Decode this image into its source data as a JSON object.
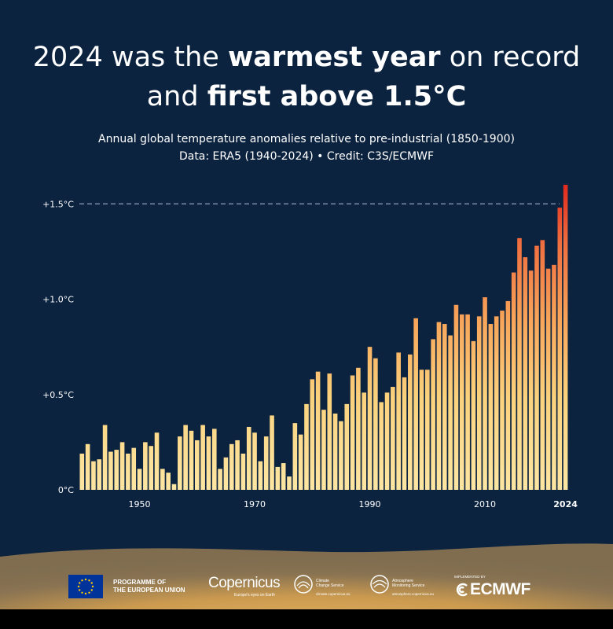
{
  "headline": {
    "line1_pre": "2024 was the ",
    "line1_bold": "warmest year",
    "line1_post": " on record",
    "line2_pre": "and ",
    "line2_bold": "first above 1.5°C"
  },
  "subtitle": {
    "line1": "Annual global temperature anomalies relative to pre-industrial (1850-1900)",
    "line2": "Data: ERA5 (1940-2024) • Credit: C3S/ECMWF"
  },
  "chart_data": {
    "type": "bar",
    "x": [
      1940,
      1941,
      1942,
      1943,
      1944,
      1945,
      1946,
      1947,
      1948,
      1949,
      1950,
      1951,
      1952,
      1953,
      1954,
      1955,
      1956,
      1957,
      1958,
      1959,
      1960,
      1961,
      1962,
      1963,
      1964,
      1965,
      1966,
      1967,
      1968,
      1969,
      1970,
      1971,
      1972,
      1973,
      1974,
      1975,
      1976,
      1977,
      1978,
      1979,
      1980,
      1981,
      1982,
      1983,
      1984,
      1985,
      1986,
      1987,
      1988,
      1989,
      1990,
      1991,
      1992,
      1993,
      1994,
      1995,
      1996,
      1997,
      1998,
      1999,
      2000,
      2001,
      2002,
      2003,
      2004,
      2005,
      2006,
      2007,
      2008,
      2009,
      2010,
      2011,
      2012,
      2013,
      2014,
      2015,
      2016,
      2017,
      2018,
      2019,
      2020,
      2021,
      2022,
      2023,
      2024
    ],
    "values": [
      0.19,
      0.24,
      0.15,
      0.16,
      0.34,
      0.2,
      0.21,
      0.25,
      0.19,
      0.22,
      0.11,
      0.25,
      0.23,
      0.3,
      0.11,
      0.09,
      0.03,
      0.28,
      0.34,
      0.31,
      0.26,
      0.34,
      0.28,
      0.32,
      0.11,
      0.17,
      0.24,
      0.26,
      0.19,
      0.33,
      0.3,
      0.15,
      0.28,
      0.39,
      0.12,
      0.14,
      0.07,
      0.35,
      0.29,
      0.45,
      0.58,
      0.62,
      0.42,
      0.61,
      0.4,
      0.36,
      0.45,
      0.6,
      0.64,
      0.51,
      0.75,
      0.69,
      0.46,
      0.51,
      0.54,
      0.72,
      0.59,
      0.71,
      0.9,
      0.63,
      0.63,
      0.79,
      0.88,
      0.87,
      0.81,
      0.97,
      0.92,
      0.92,
      0.78,
      0.91,
      1.01,
      0.87,
      0.91,
      0.94,
      0.99,
      1.14,
      1.32,
      1.22,
      1.15,
      1.28,
      1.31,
      1.16,
      1.18,
      1.48,
      1.6
    ],
    "ylim": [
      0,
      1.6
    ],
    "yticks": [
      0,
      0.5,
      1.0,
      1.5
    ],
    "ytick_labels": [
      "0°C",
      "+0.5°C",
      "+1.0°C",
      "+1.5°C"
    ],
    "xticks": [
      1950,
      1970,
      1990,
      2010,
      2024
    ],
    "xtick_labels": [
      "1950",
      "1970",
      "1990",
      "2010",
      "2024"
    ],
    "reference_line": 1.5,
    "grid": false,
    "colors": {
      "low": "#fce097",
      "mid": "#f9a85a",
      "high": "#e63322",
      "reference": "#8fa3b8",
      "axis_text": "#ffffff"
    }
  },
  "footer": {
    "eu_line1": "PROGRAMME OF",
    "eu_line2": "THE EUROPEAN UNION",
    "copernicus_name": "Copernicus",
    "copernicus_tagline": "Europe's eyes on Earth",
    "c3s_name_line1": "Climate",
    "c3s_name_line2": "Change Service",
    "c3s_url": "climate.copernicus.eu",
    "cams_name_line1": "Atmosphere",
    "cams_name_line2": "Monitoring Service",
    "cams_url": "atmosphere.copernicus.eu",
    "ecmwf_implemented": "IMPLEMENTED BY",
    "ecmwf_name": "ECMWF"
  },
  "colors": {
    "background": "#0c2340",
    "text": "#ffffff",
    "eu_blue": "#003399",
    "eu_star": "#ffcc00"
  }
}
